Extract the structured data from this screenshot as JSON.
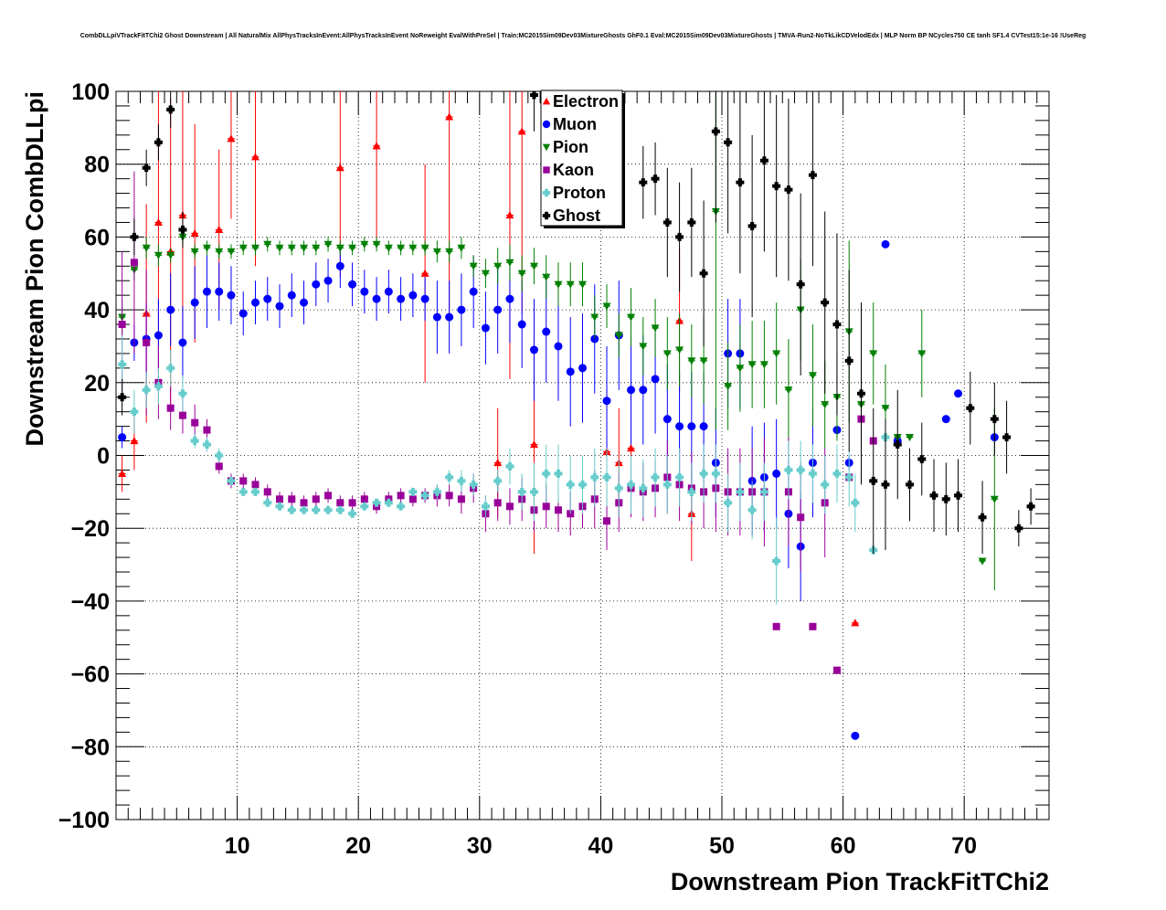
{
  "chart_data": {
    "type": "scatter",
    "title": "CombDLLpiVTrackFitTChi2 Ghost Downstream | All NaturalMix AllPhysTracksInEvent:AllPhysTracksInEvent NoReweight EvalWithPreSel | Train:MC2015Sim09Dev03MixtureGhosts GhF0.1 Eval:MC2015Sim09Dev03MixtureGhosts | TMVA-Run2-NoTkLikCDVelodEdx | MLP Norm BP NCycles750 CE tanh SF1.4 CVTest15:1e-16 !UseReg",
    "xlabel": "Downstream Pion TrackFitTChi2",
    "ylabel": "Downstream Pion CombDLLpi",
    "xlim": [
      0,
      77
    ],
    "ylim": [
      -100,
      100
    ],
    "xticks": [
      10,
      20,
      30,
      40,
      50,
      60,
      70
    ],
    "yticks": [
      -100,
      -80,
      -60,
      -40,
      -20,
      0,
      20,
      40,
      60,
      80,
      100
    ],
    "grid": true,
    "legend_position": "top-center",
    "series": [
      {
        "name": "Electron",
        "color": "#ff0000",
        "marker": "triangle-up",
        "x": [
          0.5,
          1.5,
          2.5,
          3.5,
          4.5,
          5.5,
          6.5,
          8.5,
          9.5,
          11.5,
          18.5,
          21.5,
          25.5,
          27.5,
          31.5,
          32.5,
          33.5,
          34.5,
          40.5,
          41.5,
          42.5,
          46.5,
          47.5,
          61.0
        ],
        "y": [
          -5,
          4,
          39,
          64,
          56,
          66,
          61,
          62,
          87,
          82,
          79,
          85,
          50,
          93,
          -2,
          66,
          89,
          3,
          1,
          -2,
          2,
          37,
          -16,
          -46
        ],
        "err": [
          5,
          8,
          30,
          40,
          42,
          35,
          30,
          22,
          22,
          30,
          30,
          28,
          30,
          55,
          15,
          45,
          50,
          30,
          18,
          15,
          15,
          20,
          13,
          0
        ]
      },
      {
        "name": "Muon",
        "color": "#0000ff",
        "marker": "circle",
        "x": [
          0.5,
          1.5,
          2.5,
          3.5,
          4.5,
          5.5,
          6.5,
          7.5,
          8.5,
          9.5,
          10.5,
          11.5,
          12.5,
          13.5,
          14.5,
          15.5,
          16.5,
          17.5,
          18.5,
          19.5,
          20.5,
          21.5,
          22.5,
          23.5,
          24.5,
          25.5,
          26.5,
          27.5,
          28.5,
          29.5,
          30.5,
          31.5,
          32.5,
          33.5,
          34.5,
          35.5,
          36.5,
          37.5,
          38.5,
          39.5,
          40.5,
          41.5,
          42.5,
          43.5,
          44.5,
          45.5,
          46.5,
          47.5,
          48.5,
          49.5,
          50.5,
          51.5,
          52.5,
          53.5,
          54.5,
          55.5,
          56.5,
          57.5,
          59.5,
          60.5,
          61.0,
          63.5,
          64.5,
          68.5,
          69.5,
          72.5
        ],
        "y": [
          5,
          31,
          32,
          33,
          40,
          31,
          42,
          45,
          45,
          44,
          39,
          42,
          43,
          41,
          44,
          42,
          47,
          48,
          52,
          47,
          45,
          43,
          45,
          43,
          44,
          43,
          38,
          38,
          40,
          45,
          35,
          40,
          43,
          36,
          29,
          34,
          30,
          23,
          24,
          32,
          15,
          33,
          18,
          18,
          21,
          10,
          8,
          8,
          8,
          -2,
          28,
          28,
          -7,
          -6,
          -5,
          -16,
          -25,
          -2,
          7,
          -2,
          -77,
          58,
          4,
          10,
          17,
          5
        ],
        "err": [
          3,
          5,
          10,
          10,
          10,
          10,
          10,
          10,
          8,
          8,
          6,
          6,
          6,
          6,
          6,
          6,
          6,
          6,
          6,
          6,
          6,
          6,
          6,
          6,
          6,
          6,
          10,
          10,
          10,
          10,
          10,
          12,
          12,
          12,
          14,
          14,
          15,
          15,
          15,
          15,
          15,
          15,
          15,
          15,
          15,
          15,
          15,
          15,
          15,
          15,
          15,
          15,
          15,
          15,
          15,
          15,
          15,
          15,
          2,
          2,
          0,
          0,
          0,
          0,
          0,
          0
        ]
      },
      {
        "name": "Pion",
        "color": "#008000",
        "marker": "triangle-down",
        "x": [
          0.5,
          1.5,
          2.5,
          3.5,
          4.5,
          5.5,
          6.5,
          7.5,
          8.5,
          9.5,
          10.5,
          11.5,
          12.5,
          13.5,
          14.5,
          15.5,
          16.5,
          17.5,
          18.5,
          19.5,
          20.5,
          21.5,
          22.5,
          23.5,
          24.5,
          25.5,
          26.5,
          27.5,
          28.5,
          29.5,
          30.5,
          31.5,
          32.5,
          33.5,
          34.5,
          35.5,
          36.5,
          37.5,
          38.5,
          39.5,
          40.5,
          41.5,
          42.5,
          43.5,
          44.5,
          45.5,
          46.5,
          47.5,
          48.5,
          49.5,
          50.5,
          51.5,
          52.5,
          53.5,
          54.5,
          55.5,
          56.5,
          57.5,
          58.5,
          59.5,
          60.5,
          61.5,
          62.5,
          63.5,
          64.5,
          65.5,
          66.5,
          71.5,
          72.5
        ],
        "y": [
          38,
          51,
          57,
          55,
          55,
          60,
          56,
          57,
          56,
          56,
          57,
          57,
          58,
          57,
          57,
          57,
          57,
          58,
          57,
          57,
          58,
          58,
          57,
          57,
          57,
          57,
          56,
          56,
          57,
          52,
          50,
          52,
          53,
          50,
          52,
          49,
          47,
          47,
          47,
          38,
          41,
          33,
          38,
          30,
          35,
          28,
          29,
          26,
          26,
          67,
          19,
          24,
          25,
          25,
          28,
          18,
          40,
          22,
          14,
          16,
          34,
          14,
          28,
          13,
          5,
          5,
          28,
          -29,
          -12
        ],
        "err": [
          5,
          3,
          3,
          3,
          2,
          2,
          2,
          2,
          2,
          2,
          2,
          2,
          2,
          2,
          2,
          2,
          2,
          2,
          2,
          2,
          2,
          2,
          2,
          2,
          2,
          2,
          3,
          3,
          3,
          3,
          4,
          5,
          5,
          5,
          5,
          6,
          6,
          6,
          6,
          6,
          6,
          6,
          8,
          8,
          8,
          10,
          10,
          10,
          12,
          60,
          12,
          12,
          12,
          12,
          14,
          14,
          14,
          14,
          12,
          12,
          25,
          12,
          14,
          12,
          0,
          0,
          12,
          0,
          25
        ]
      },
      {
        "name": "Kaon",
        "color": "#990099",
        "marker": "square",
        "x": [
          0.5,
          1.5,
          2.5,
          3.5,
          4.5,
          5.5,
          6.5,
          7.5,
          8.5,
          9.5,
          10.5,
          11.5,
          12.5,
          13.5,
          14.5,
          15.5,
          16.5,
          17.5,
          18.5,
          19.5,
          20.5,
          21.5,
          22.5,
          23.5,
          24.5,
          25.5,
          26.5,
          27.5,
          28.5,
          29.5,
          30.5,
          31.5,
          32.5,
          33.5,
          34.5,
          35.5,
          36.5,
          37.5,
          38.5,
          39.5,
          40.5,
          41.5,
          42.5,
          43.5,
          44.5,
          45.5,
          46.5,
          47.5,
          48.5,
          49.5,
          50.5,
          51.5,
          52.5,
          53.5,
          54.5,
          55.5,
          56.5,
          57.5,
          58.5,
          59.5,
          60.5,
          61.5,
          62.5
        ],
        "y": [
          36,
          53,
          31,
          20,
          13,
          11,
          9,
          7,
          -3,
          -7,
          -7,
          -8,
          -10,
          -12,
          -12,
          -13,
          -12,
          -11,
          -13,
          -13,
          -12,
          -14,
          -12,
          -11,
          -12,
          -11,
          -11,
          -11,
          -12,
          -9,
          -16,
          -13,
          -14,
          -12,
          -15,
          -14,
          -15,
          -16,
          -14,
          -12,
          -18,
          -13,
          -9,
          -10,
          -9,
          -6,
          -8,
          -9,
          -10,
          -9,
          -10,
          -10,
          -10,
          -10,
          -47,
          -10,
          -17,
          -47,
          -13,
          -59,
          -6,
          10,
          4
        ],
        "err": [
          20,
          25,
          20,
          10,
          6,
          5,
          5,
          3,
          2,
          2,
          2,
          2,
          2,
          2,
          2,
          2,
          2,
          2,
          2,
          2,
          2,
          2,
          2,
          2,
          2,
          2,
          3,
          3,
          4,
          4,
          5,
          5,
          5,
          6,
          6,
          6,
          6,
          6,
          6,
          8,
          8,
          8,
          8,
          8,
          8,
          10,
          10,
          10,
          10,
          12,
          12,
          12,
          12,
          15,
          0,
          15,
          15,
          0,
          15,
          0,
          0,
          0,
          0
        ]
      },
      {
        "name": "Proton",
        "color": "#66cccc",
        "marker": "cross",
        "x": [
          0.5,
          1.5,
          2.5,
          3.5,
          4.5,
          5.5,
          6.5,
          7.5,
          8.5,
          9.5,
          10.5,
          11.5,
          12.5,
          13.5,
          14.5,
          15.5,
          16.5,
          17.5,
          18.5,
          19.5,
          20.5,
          21.5,
          22.5,
          23.5,
          24.5,
          25.5,
          26.5,
          27.5,
          28.5,
          29.5,
          30.5,
          31.5,
          32.5,
          33.5,
          34.5,
          35.5,
          36.5,
          37.5,
          38.5,
          39.5,
          40.5,
          41.5,
          42.5,
          43.5,
          44.5,
          45.5,
          46.5,
          47.5,
          48.5,
          49.5,
          50.5,
          51.5,
          52.5,
          53.5,
          54.5,
          55.5,
          56.5,
          57.5,
          58.5,
          59.5,
          60.5,
          61.0,
          62.5,
          63.5
        ],
        "y": [
          25,
          12,
          18,
          19,
          24,
          17,
          4,
          3,
          0,
          -7,
          -10,
          -10,
          -13,
          -14,
          -15,
          -15,
          -15,
          -15,
          -15,
          -16,
          -14,
          -13,
          -13,
          -14,
          -10,
          -11,
          -10,
          -6,
          -7,
          -8,
          -14,
          -7,
          -3,
          -10,
          -10,
          -5,
          -5,
          -8,
          -8,
          -6,
          -6,
          -9,
          -8,
          -9,
          -6,
          -8,
          -6,
          -10,
          -5,
          -5,
          -13,
          -10,
          -15,
          -10,
          -29,
          -4,
          -4,
          -5,
          -8,
          -5,
          -6,
          -13,
          -26,
          5
        ],
        "err": [
          8,
          6,
          5,
          5,
          5,
          5,
          2,
          2,
          2,
          1,
          1,
          1,
          1,
          1,
          1,
          1,
          1,
          1,
          1,
          1,
          1,
          1,
          1,
          1,
          1,
          1,
          2,
          2,
          3,
          3,
          3,
          3,
          5,
          5,
          8,
          8,
          8,
          8,
          8,
          8,
          8,
          8,
          8,
          8,
          8,
          8,
          8,
          8,
          8,
          8,
          8,
          8,
          8,
          8,
          12,
          8,
          8,
          8,
          8,
          8,
          8,
          8,
          0,
          0
        ]
      },
      {
        "name": "Ghost",
        "color": "#000000",
        "marker": "cross",
        "x": [
          0.5,
          1.5,
          2.5,
          3.5,
          4.5,
          5.5,
          34.5,
          43.5,
          44.5,
          45.5,
          46.5,
          47.5,
          48.5,
          49.5,
          50.5,
          51.5,
          52.5,
          53.5,
          54.5,
          55.5,
          56.5,
          57.5,
          58.5,
          59.5,
          60.5,
          61.5,
          62.5,
          63.5,
          64.5,
          65.5,
          66.5,
          67.5,
          68.5,
          69.5,
          70.5,
          71.5,
          72.5,
          73.5,
          74.5,
          75.5
        ],
        "y": [
          16,
          60,
          79,
          86,
          95,
          62,
          99,
          75,
          76,
          64,
          60,
          64,
          50,
          89,
          86,
          75,
          63,
          81,
          74,
          73,
          47,
          77,
          42,
          36,
          26,
          17,
          -7,
          -8,
          3,
          -8,
          -1,
          -11,
          -12,
          -11,
          13,
          -17,
          10,
          5,
          -20,
          -14
        ],
        "err": [
          5,
          5,
          5,
          5,
          5,
          5,
          10,
          10,
          10,
          15,
          15,
          15,
          20,
          25,
          25,
          25,
          25,
          25,
          25,
          25,
          25,
          25,
          25,
          25,
          25,
          25,
          20,
          18,
          15,
          10,
          10,
          10,
          10,
          10,
          10,
          10,
          10,
          10,
          5,
          5
        ]
      }
    ]
  }
}
